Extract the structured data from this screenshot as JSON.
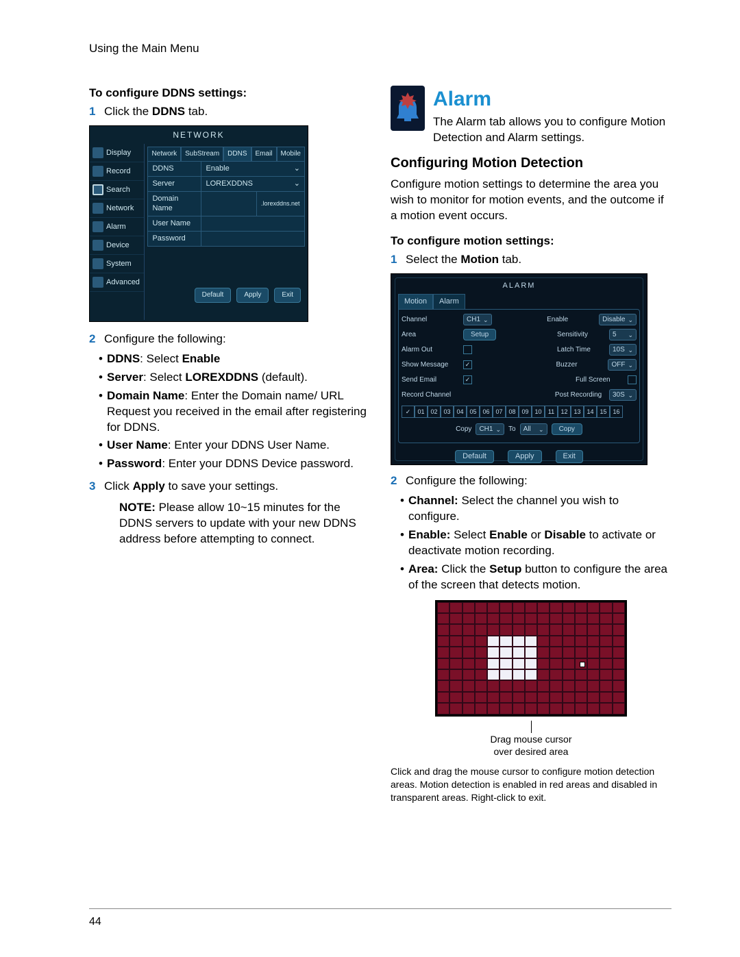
{
  "header": "Using the Main Menu",
  "page_number": "44",
  "colors": {
    "accent": "#1a8fd0",
    "step_num": "#1a6fb5",
    "shot_bg": "#0a2230",
    "shot_text": "#d0e8f0",
    "motion_red": "#7a1028",
    "motion_sel": "#f0f0f8"
  },
  "left": {
    "h1": "To configure DDNS settings:",
    "step1_num": "1",
    "step1_a": "Click the ",
    "step1_b": "DDNS",
    "step1_c": " tab.",
    "net": {
      "title": "NETWORK",
      "side": [
        "Display",
        "Record",
        "Search",
        "Network",
        "Alarm",
        "Device",
        "System",
        "Advanced"
      ],
      "tabs": [
        "Network",
        "SubStream",
        "DDNS",
        "Email",
        "Mobile"
      ],
      "active_tab": 2,
      "rows": [
        {
          "label": "DDNS",
          "value": "Enable",
          "dropdown": true
        },
        {
          "label": "Server",
          "value": "LOREXDDNS",
          "dropdown": true
        },
        {
          "label": "Domain Name",
          "value": "",
          "suffix": ".lorexddns.net"
        },
        {
          "label": "User Name",
          "value": ""
        },
        {
          "label": "Password",
          "value": ""
        }
      ],
      "btns": [
        "Default",
        "Apply",
        "Exit"
      ]
    },
    "step2_num": "2",
    "step2": "Configure the following:",
    "b1_a": "DDNS",
    "b1_b": ": Select ",
    "b1_c": "Enable",
    "b2_a": "Server",
    "b2_b": ": Select ",
    "b2_c": "LOREXDDNS",
    "b2_d": " (default).",
    "b3_a": "Domain Name",
    "b3_b": ": Enter the Domain name/ URL Request you received in the email after registering for DDNS.",
    "b4_a": "User Name",
    "b4_b": ": Enter your DDNS User Name.",
    "b5_a": "Password",
    "b5_b": ": Enter your DDNS Device password.",
    "step3_num": "3",
    "step3_a": "Click ",
    "step3_b": "Apply",
    "step3_c": " to save your settings.",
    "note_label": "NOTE:",
    "note_body": " Please allow 10~15 minutes for the DDNS servers to update with your new DDNS address before attempting to connect."
  },
  "right": {
    "alarm_title": "Alarm",
    "alarm_body": "The Alarm tab allows you to configure Motion Detection and Alarm settings.",
    "section": "Configuring Motion Detection",
    "section_body": "Configure motion settings to determine the area you wish to monitor for motion events, and the outcome if a motion event occurs.",
    "h1": "To configure motion settings:",
    "step1_num": "1",
    "step1_a": "Select the ",
    "step1_b": "Motion",
    "step1_c": " tab.",
    "alarm_shot": {
      "title": "ALARM",
      "tabs": [
        "Motion",
        "Alarm"
      ],
      "channel_label": "Channel",
      "channel_val": "CH1",
      "enable_label": "Enable",
      "enable_val": "Disable",
      "area_label": "Area",
      "area_btn": "Setup",
      "sens_label": "Sensitivity",
      "sens_val": "5",
      "alarmout_label": "Alarm Out",
      "latch_label": "Latch Time",
      "latch_val": "10S",
      "showmsg_label": "Show Message",
      "buzzer_label": "Buzzer",
      "buzzer_val": "OFF",
      "email_label": "Send Email",
      "fullscreen_label": "Full Screen",
      "recch_label": "Record Channel",
      "postrec_label": "Post Recording",
      "postrec_val": "30S",
      "channels": [
        "01",
        "02",
        "03",
        "04",
        "05",
        "06",
        "07",
        "08",
        "09",
        "10",
        "11",
        "12",
        "13",
        "14",
        "15",
        "16"
      ],
      "copy_label": "Copy",
      "copy_from": "CH1",
      "to_label": "To",
      "to_val": "All",
      "copy_btn": "Copy",
      "btns": [
        "Default",
        "Apply",
        "Exit"
      ]
    },
    "step2_num": "2",
    "step2": "Configure the following:",
    "b1_a": "Channel:",
    "b1_b": " Select the channel you wish to configure.",
    "b2_a": "Enable:",
    "b2_b": " Select ",
    "b2_c": "Enable",
    "b2_d": " or ",
    "b2_e": "Disable",
    "b2_f": " to activate or deactivate motion recording.",
    "b3_a": "Area:",
    "b3_b": " Click the ",
    "b3_c": "Setup",
    "b3_d": " button to configure the area of the screen that detects motion.",
    "motion_caption_1": "Drag mouse cursor",
    "motion_caption_2": "over desired area",
    "motion_small": "Click and drag the mouse cursor to configure motion detection areas. Motion detection is enabled in red areas and disabled in transparent areas. Right-click to exit.",
    "motion_grid": {
      "cols": 15,
      "rows": 10,
      "selected": [
        [
          3,
          4
        ],
        [
          3,
          5
        ],
        [
          3,
          6
        ],
        [
          3,
          7
        ],
        [
          4,
          4
        ],
        [
          4,
          5
        ],
        [
          4,
          6
        ],
        [
          4,
          7
        ],
        [
          5,
          4
        ],
        [
          5,
          5
        ],
        [
          5,
          6
        ],
        [
          5,
          7
        ],
        [
          6,
          4
        ],
        [
          6,
          5
        ],
        [
          6,
          6
        ],
        [
          6,
          7
        ]
      ],
      "cursor": [
        5,
        11
      ]
    }
  }
}
